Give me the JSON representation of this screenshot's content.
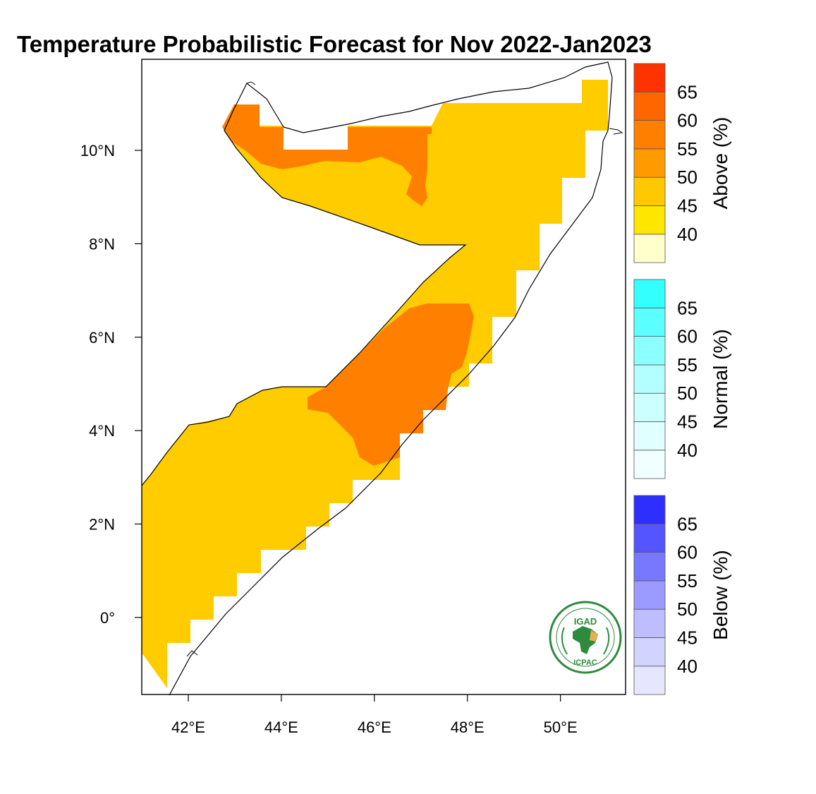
{
  "title": "Temperature Probabilistic Forecast for Nov 2022-Jan2023",
  "map": {
    "x_axis": {
      "ticks": [
        "42°E",
        "44°E",
        "46°E",
        "48°E",
        "50°E"
      ],
      "lon_values": [
        42,
        44,
        46,
        48,
        50
      ],
      "range": [
        41,
        51.4
      ]
    },
    "y_axis": {
      "ticks": [
        "10°N",
        "8°N",
        "6°N",
        "4°N",
        "2°N",
        "0°"
      ],
      "lat_values": [
        10,
        8,
        6,
        4,
        2,
        0
      ],
      "range": [
        -1.65,
        11.95
      ]
    },
    "regions": [
      {
        "category": "Above",
        "level": "45-50",
        "color": "#FFCC00",
        "area": "most of Somalia"
      },
      {
        "category": "Above",
        "level": "55-60",
        "color": "#FF8000",
        "area": "north-west"
      },
      {
        "category": "Above",
        "level": "55-60",
        "color": "#FF8000",
        "area": "central"
      }
    ]
  },
  "legends": [
    {
      "label": "Above (%)",
      "colors": [
        "#FFFFCC",
        "#FFE600",
        "#FFC800",
        "#FF9B00",
        "#FF7F00",
        "#FF6600",
        "#FF3300"
      ],
      "ticks": [
        "40",
        "45",
        "50",
        "55",
        "60",
        "65"
      ]
    },
    {
      "label": "Normal (%)",
      "colors": [
        "#F0FFFF",
        "#E0FFFF",
        "#CCFFFF",
        "#B3FFFF",
        "#8CFFFF",
        "#5CFFFF",
        "#33FFFF"
      ],
      "ticks": [
        "40",
        "45",
        "50",
        "55",
        "60",
        "65"
      ]
    },
    {
      "label": "Below (%)",
      "colors": [
        "#E6E6FF",
        "#D3D3FF",
        "#BDBDFF",
        "#9A9AFF",
        "#7878FF",
        "#5555FF",
        "#2E2EFF"
      ],
      "ticks": [
        "40",
        "45",
        "50",
        "55",
        "60",
        "65"
      ]
    }
  ],
  "logo": {
    "top_text": "IGAD",
    "bottom_text": "ICPAC"
  }
}
